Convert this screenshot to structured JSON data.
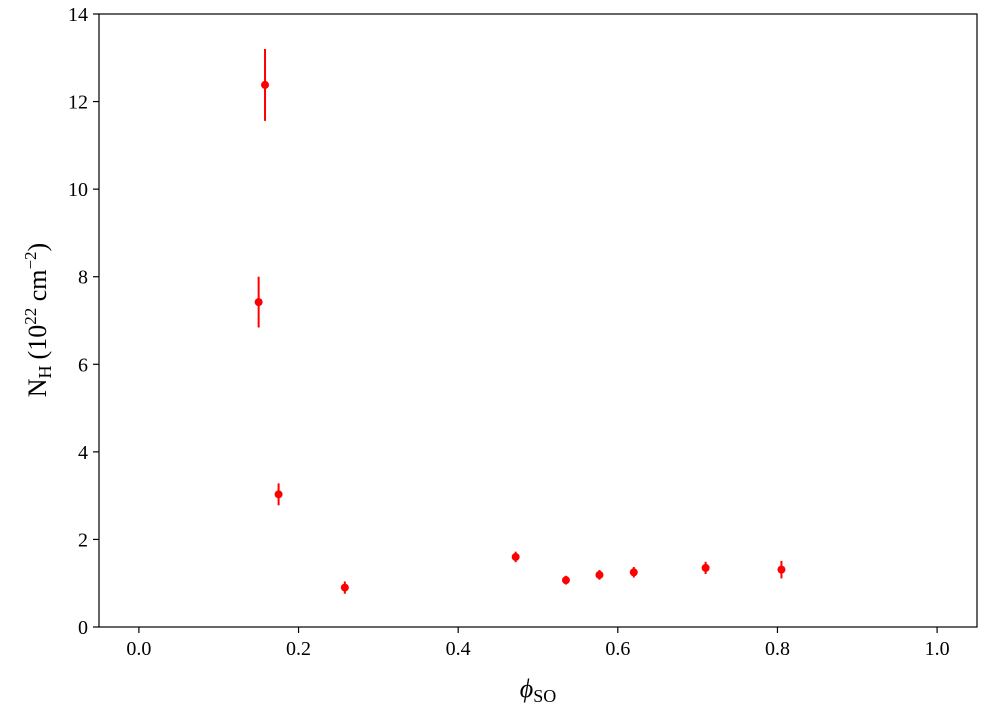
{
  "chart_data": {
    "type": "scatter",
    "xlabel": "ϕ",
    "xlabel_sub": "SO",
    "ylabel": "N",
    "ylabel_sub": "H",
    "ylabel_units": "(10",
    "ylabel_exp1": "22",
    "ylabel_mid": " cm",
    "ylabel_exp2": "−2",
    "ylabel_close": ")",
    "xlim": [
      -0.05,
      1.05
    ],
    "ylim": [
      0,
      14
    ],
    "xticks": [
      0.0,
      0.2,
      0.4,
      0.6,
      0.8,
      1.0
    ],
    "xtick_labels": [
      "0.0",
      "0.2",
      "0.4",
      "0.6",
      "0.8",
      "1.0"
    ],
    "yticks": [
      0,
      2,
      4,
      6,
      8,
      10,
      12,
      14
    ],
    "ytick_labels": [
      "0",
      "2",
      "4",
      "6",
      "8",
      "10",
      "12",
      "14"
    ],
    "grid": false,
    "marker_color": "#ff0000",
    "series": [
      {
        "x": [
          0.15,
          0.158,
          0.175,
          0.258,
          0.472,
          0.535,
          0.577,
          0.62,
          0.71,
          0.805
        ],
        "y": [
          7.42,
          12.38,
          3.03,
          0.9,
          1.6,
          1.07,
          1.19,
          1.25,
          1.35,
          1.31
        ],
        "err": [
          0.58,
          0.82,
          0.25,
          0.14,
          0.12,
          0.1,
          0.11,
          0.12,
          0.14,
          0.2
        ]
      }
    ]
  }
}
